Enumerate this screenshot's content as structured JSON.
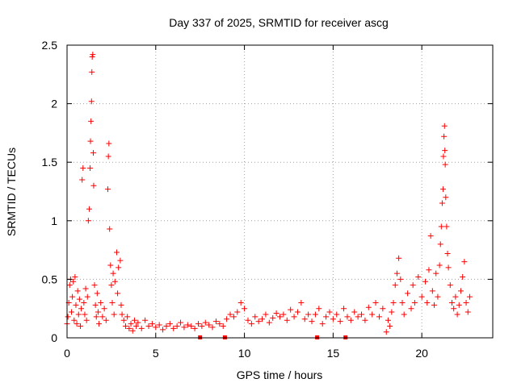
{
  "chart_data": {
    "type": "scatter",
    "title": "Day 337 of 2025, SRMTID for receiver ascg",
    "xlabel": "GPS time / hours",
    "ylabel": "SRMTID / TECUs",
    "xlim": [
      0,
      24
    ],
    "ylim": [
      0,
      2.5
    ],
    "xticks": [
      0,
      5,
      10,
      15,
      20
    ],
    "xtick_labels": [
      "0",
      "5",
      "10",
      "15",
      "20"
    ],
    "yticks": [
      0,
      0.5,
      1,
      1.5,
      2,
      2.5
    ],
    "ytick_labels": [
      "0",
      "0.5",
      "1",
      "1.5",
      "2",
      "2.5"
    ],
    "grid": true,
    "marker": "plus",
    "color": "#ff0000",
    "series": [
      {
        "name": "SRMTID",
        "points": [
          [
            0.0,
            0.12
          ],
          [
            0.05,
            0.18
          ],
          [
            0.1,
            0.3
          ],
          [
            0.15,
            0.45
          ],
          [
            0.2,
            0.5
          ],
          [
            0.25,
            0.22
          ],
          [
            0.3,
            0.35
          ],
          [
            0.35,
            0.48
          ],
          [
            0.4,
            0.15
          ],
          [
            0.45,
            0.52
          ],
          [
            0.5,
            0.28
          ],
          [
            0.55,
            0.12
          ],
          [
            0.6,
            0.4
          ],
          [
            0.65,
            0.2
          ],
          [
            0.7,
            0.33
          ],
          [
            0.75,
            0.1
          ],
          [
            0.8,
            0.25
          ],
          [
            0.85,
            1.35
          ],
          [
            0.9,
            1.45
          ],
          [
            0.95,
            0.3
          ],
          [
            1.0,
            0.2
          ],
          [
            1.05,
            0.42
          ],
          [
            1.1,
            0.15
          ],
          [
            1.15,
            0.35
          ],
          [
            1.2,
            1.0
          ],
          [
            1.25,
            1.1
          ],
          [
            1.3,
            1.45
          ],
          [
            1.32,
            1.68
          ],
          [
            1.35,
            1.85
          ],
          [
            1.38,
            2.02
          ],
          [
            1.4,
            2.27
          ],
          [
            1.42,
            2.4
          ],
          [
            1.45,
            2.42
          ],
          [
            1.48,
            1.58
          ],
          [
            1.5,
            1.3
          ],
          [
            1.55,
            0.45
          ],
          [
            1.6,
            0.28
          ],
          [
            1.65,
            0.18
          ],
          [
            1.7,
            0.38
          ],
          [
            1.75,
            0.22
          ],
          [
            1.8,
            0.12
          ],
          [
            1.9,
            0.3
          ],
          [
            2.0,
            0.18
          ],
          [
            2.1,
            0.25
          ],
          [
            2.2,
            0.15
          ],
          [
            2.3,
            1.27
          ],
          [
            2.33,
            1.55
          ],
          [
            2.36,
            1.66
          ],
          [
            2.4,
            0.93
          ],
          [
            2.45,
            0.62
          ],
          [
            2.5,
            0.45
          ],
          [
            2.55,
            0.3
          ],
          [
            2.6,
            0.55
          ],
          [
            2.65,
            0.2
          ],
          [
            2.7,
            0.48
          ],
          [
            2.8,
            0.73
          ],
          [
            2.85,
            0.38
          ],
          [
            2.9,
            0.6
          ],
          [
            3.0,
            0.66
          ],
          [
            3.05,
            0.28
          ],
          [
            3.1,
            0.2
          ],
          [
            3.2,
            0.15
          ],
          [
            3.3,
            0.1
          ],
          [
            3.4,
            0.18
          ],
          [
            3.5,
            0.08
          ],
          [
            3.6,
            0.12
          ],
          [
            3.7,
            0.06
          ],
          [
            3.8,
            0.15
          ],
          [
            3.9,
            0.1
          ],
          [
            4.0,
            0.13
          ],
          [
            4.2,
            0.08
          ],
          [
            4.4,
            0.15
          ],
          [
            4.6,
            0.1
          ],
          [
            4.8,
            0.12
          ],
          [
            5.0,
            0.09
          ],
          [
            5.2,
            0.11
          ],
          [
            5.4,
            0.07
          ],
          [
            5.6,
            0.1
          ],
          [
            5.8,
            0.12
          ],
          [
            6.0,
            0.08
          ],
          [
            6.2,
            0.1
          ],
          [
            6.4,
            0.13
          ],
          [
            6.6,
            0.09
          ],
          [
            6.8,
            0.11
          ],
          [
            7.0,
            0.1
          ],
          [
            7.2,
            0.08
          ],
          [
            7.4,
            0.12
          ],
          [
            7.6,
            0.1
          ],
          [
            7.8,
            0.13
          ],
          [
            8.0,
            0.11
          ],
          [
            8.2,
            0.09
          ],
          [
            8.4,
            0.14
          ],
          [
            8.6,
            0.12
          ],
          [
            8.8,
            0.1
          ],
          [
            9.0,
            0.16
          ],
          [
            9.2,
            0.2
          ],
          [
            9.4,
            0.18
          ],
          [
            9.6,
            0.22
          ],
          [
            9.8,
            0.3
          ],
          [
            10.0,
            0.25
          ],
          [
            10.2,
            0.15
          ],
          [
            10.4,
            0.12
          ],
          [
            10.6,
            0.18
          ],
          [
            10.8,
            0.14
          ],
          [
            11.0,
            0.16
          ],
          [
            11.2,
            0.2
          ],
          [
            11.4,
            0.13
          ],
          [
            11.6,
            0.17
          ],
          [
            11.8,
            0.21
          ],
          [
            12.0,
            0.18
          ],
          [
            12.2,
            0.2
          ],
          [
            12.4,
            0.15
          ],
          [
            12.6,
            0.24
          ],
          [
            12.8,
            0.18
          ],
          [
            13.0,
            0.22
          ],
          [
            13.2,
            0.3
          ],
          [
            13.4,
            0.16
          ],
          [
            13.6,
            0.2
          ],
          [
            13.8,
            0.14
          ],
          [
            14.0,
            0.2
          ],
          [
            14.2,
            0.25
          ],
          [
            14.4,
            0.12
          ],
          [
            14.6,
            0.18
          ],
          [
            14.8,
            0.22
          ],
          [
            15.0,
            0.16
          ],
          [
            15.2,
            0.2
          ],
          [
            15.4,
            0.14
          ],
          [
            15.6,
            0.25
          ],
          [
            15.8,
            0.18
          ],
          [
            16.0,
            0.15
          ],
          [
            16.2,
            0.22
          ],
          [
            16.4,
            0.18
          ],
          [
            16.6,
            0.2
          ],
          [
            16.8,
            0.15
          ],
          [
            17.0,
            0.26
          ],
          [
            17.2,
            0.2
          ],
          [
            17.4,
            0.3
          ],
          [
            17.6,
            0.18
          ],
          [
            17.8,
            0.25
          ],
          [
            18.0,
            0.05
          ],
          [
            18.1,
            0.15
          ],
          [
            18.2,
            0.1
          ],
          [
            18.3,
            0.22
          ],
          [
            18.4,
            0.3
          ],
          [
            18.5,
            0.45
          ],
          [
            18.6,
            0.55
          ],
          [
            18.7,
            0.68
          ],
          [
            18.8,
            0.5
          ],
          [
            18.9,
            0.3
          ],
          [
            19.0,
            0.2
          ],
          [
            19.2,
            0.38
          ],
          [
            19.4,
            0.25
          ],
          [
            19.5,
            0.45
          ],
          [
            19.6,
            0.3
          ],
          [
            19.8,
            0.52
          ],
          [
            20.0,
            0.35
          ],
          [
            20.2,
            0.48
          ],
          [
            20.3,
            0.3
          ],
          [
            20.4,
            0.58
          ],
          [
            20.5,
            0.87
          ],
          [
            20.6,
            0.4
          ],
          [
            20.7,
            0.28
          ],
          [
            20.8,
            0.55
          ],
          [
            20.9,
            0.35
          ],
          [
            21.0,
            0.62
          ],
          [
            21.05,
            0.8
          ],
          [
            21.1,
            0.95
          ],
          [
            21.15,
            1.15
          ],
          [
            21.2,
            1.27
          ],
          [
            21.22,
            1.55
          ],
          [
            21.25,
            1.72
          ],
          [
            21.28,
            1.81
          ],
          [
            21.3,
            1.6
          ],
          [
            21.32,
            1.48
          ],
          [
            21.35,
            1.2
          ],
          [
            21.4,
            0.95
          ],
          [
            21.45,
            0.72
          ],
          [
            21.5,
            0.6
          ],
          [
            21.6,
            0.45
          ],
          [
            21.7,
            0.3
          ],
          [
            21.8,
            0.25
          ],
          [
            21.9,
            0.35
          ],
          [
            22.0,
            0.2
          ],
          [
            22.1,
            0.28
          ],
          [
            22.2,
            0.4
          ],
          [
            22.3,
            0.52
          ],
          [
            22.4,
            0.65
          ],
          [
            22.5,
            0.3
          ],
          [
            22.6,
            0.22
          ],
          [
            22.7,
            0.35
          ]
        ]
      }
    ],
    "zero_markers_x": [
      7.5,
      8.9,
      14.1,
      15.7
    ]
  }
}
